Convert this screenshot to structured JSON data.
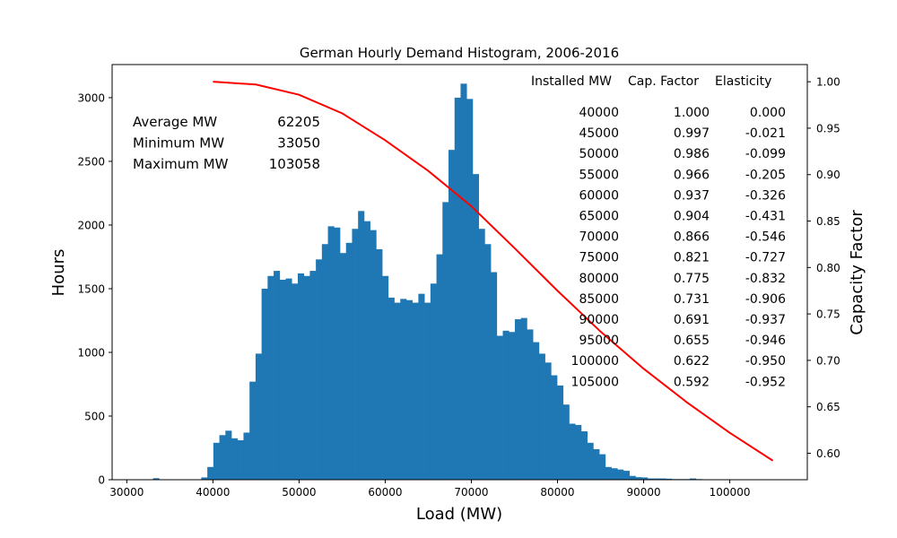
{
  "chart_data": {
    "type": "bar",
    "title": "German Hourly Demand Histogram, 2006-2016",
    "xlabel": "Load (MW)",
    "ylabel": "Hours",
    "y2label": "Capacity Factor",
    "xlim": [
      28300,
      109000
    ],
    "ylim": [
      0,
      3260
    ],
    "y2lim": [
      0.5715,
      1.0185
    ],
    "xticks": [
      30000,
      40000,
      50000,
      60000,
      70000,
      80000,
      90000,
      100000
    ],
    "yticks": [
      0,
      500,
      1000,
      1500,
      2000,
      2500,
      3000
    ],
    "y2ticks": [
      0.6,
      0.65,
      0.7,
      0.75,
      0.8,
      0.85,
      0.9,
      0.95,
      1.0
    ],
    "grid": false,
    "histogram": {
      "bin_start": 33050,
      "bin_width": 700,
      "counts": [
        12,
        0,
        0,
        0,
        0,
        0,
        0,
        0,
        18,
        100,
        290,
        350,
        385,
        325,
        310,
        370,
        770,
        990,
        1500,
        1600,
        1640,
        1570,
        1580,
        1540,
        1620,
        1600,
        1640,
        1730,
        1850,
        1990,
        1980,
        1780,
        1860,
        1970,
        2110,
        2030,
        1960,
        1810,
        1600,
        1430,
        1390,
        1420,
        1410,
        1390,
        1460,
        1390,
        1540,
        1770,
        2180,
        2590,
        3000,
        3110,
        2990,
        2400,
        1970,
        1850,
        1630,
        1130,
        1170,
        1160,
        1260,
        1270,
        1180,
        1080,
        990,
        920,
        820,
        740,
        590,
        440,
        430,
        380,
        290,
        240,
        200,
        100,
        90,
        80,
        70,
        30,
        20,
        18,
        10,
        10,
        10,
        8,
        5,
        5,
        5,
        10,
        5,
        3,
        2,
        2
      ]
    },
    "capacity_factor_line": {
      "color": "#ff0000",
      "x": [
        40000,
        45000,
        50000,
        55000,
        60000,
        65000,
        70000,
        75000,
        80000,
        85000,
        90000,
        95000,
        100000,
        105000
      ],
      "y": [
        1.0,
        0.997,
        0.986,
        0.966,
        0.937,
        0.904,
        0.866,
        0.821,
        0.775,
        0.731,
        0.691,
        0.655,
        0.622,
        0.592
      ]
    },
    "bar_color": "#1f77b4",
    "stats": [
      {
        "label": "Average MW",
        "value": "62205"
      },
      {
        "label": "Minimum MW",
        "value": "33050"
      },
      {
        "label": "Maximum MW",
        "value": "103058"
      }
    ],
    "table": {
      "headers": [
        "Installed MW",
        "Cap. Factor",
        "Elasticity"
      ],
      "rows": [
        [
          "40000",
          "1.000",
          "0.000"
        ],
        [
          "45000",
          "0.997",
          "-0.021"
        ],
        [
          "50000",
          "0.986",
          "-0.099"
        ],
        [
          "55000",
          "0.966",
          "-0.205"
        ],
        [
          "60000",
          "0.937",
          "-0.326"
        ],
        [
          "65000",
          "0.904",
          "-0.431"
        ],
        [
          "70000",
          "0.866",
          "-0.546"
        ],
        [
          "75000",
          "0.821",
          "-0.727"
        ],
        [
          "80000",
          "0.775",
          "-0.832"
        ],
        [
          "85000",
          "0.731",
          "-0.906"
        ],
        [
          "90000",
          "0.691",
          "-0.937"
        ],
        [
          "95000",
          "0.655",
          "-0.946"
        ],
        [
          "100000",
          "0.622",
          "-0.950"
        ],
        [
          "105000",
          "0.592",
          "-0.952"
        ]
      ]
    }
  }
}
